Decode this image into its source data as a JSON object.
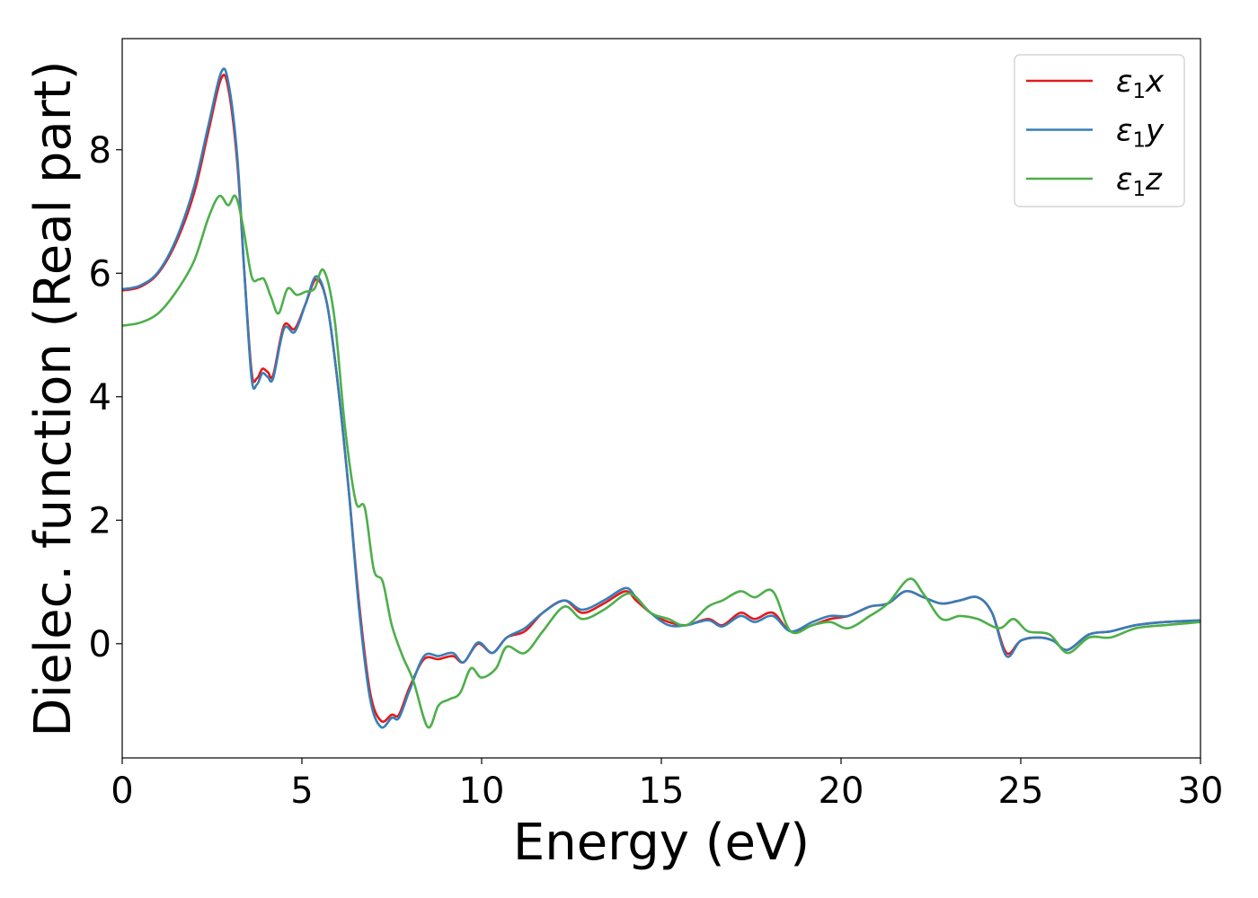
{
  "chart_data": {
    "type": "line",
    "xlabel": "Energy (eV)",
    "ylabel": "Dielec. function (Real part)",
    "xlim": [
      0,
      30
    ],
    "ylim": [
      -1.85,
      9.8
    ],
    "xticks": [
      0,
      5,
      10,
      15,
      20,
      25,
      30
    ],
    "yticks": [
      0,
      2,
      4,
      6,
      8
    ],
    "grid": false,
    "legend_position": "top-right",
    "series": [
      {
        "name": "ε1x",
        "legend_base": "ε",
        "legend_sub": "1",
        "legend_var": "x",
        "color": "#e41a1c",
        "points": [
          [
            0,
            5.72
          ],
          [
            0.5,
            5.78
          ],
          [
            1.0,
            6.0
          ],
          [
            1.5,
            6.5
          ],
          [
            2.0,
            7.3
          ],
          [
            2.4,
            8.3
          ],
          [
            2.75,
            9.15
          ],
          [
            2.95,
            9.0
          ],
          [
            3.2,
            7.8
          ],
          [
            3.4,
            6.0
          ],
          [
            3.6,
            4.4
          ],
          [
            3.75,
            4.3
          ],
          [
            3.9,
            4.45
          ],
          [
            4.05,
            4.4
          ],
          [
            4.2,
            4.35
          ],
          [
            4.5,
            5.15
          ],
          [
            4.8,
            5.1
          ],
          [
            5.1,
            5.5
          ],
          [
            5.4,
            5.9
          ],
          [
            5.7,
            5.5
          ],
          [
            6.0,
            4.2
          ],
          [
            6.3,
            2.5
          ],
          [
            6.6,
            0.6
          ],
          [
            6.9,
            -0.8
          ],
          [
            7.2,
            -1.25
          ],
          [
            7.5,
            -1.15
          ],
          [
            7.7,
            -1.15
          ],
          [
            8.0,
            -0.7
          ],
          [
            8.4,
            -0.25
          ],
          [
            8.8,
            -0.25
          ],
          [
            9.2,
            -0.2
          ],
          [
            9.5,
            -0.3
          ],
          [
            9.9,
            0.0
          ],
          [
            10.3,
            -0.15
          ],
          [
            10.7,
            0.1
          ],
          [
            11.2,
            0.2
          ],
          [
            11.7,
            0.5
          ],
          [
            12.3,
            0.7
          ],
          [
            12.8,
            0.5
          ],
          [
            13.4,
            0.65
          ],
          [
            14.0,
            0.85
          ],
          [
            14.3,
            0.7
          ],
          [
            14.7,
            0.5
          ],
          [
            15.2,
            0.35
          ],
          [
            15.7,
            0.3
          ],
          [
            16.3,
            0.4
          ],
          [
            16.7,
            0.3
          ],
          [
            17.2,
            0.5
          ],
          [
            17.6,
            0.4
          ],
          [
            18.1,
            0.5
          ],
          [
            18.6,
            0.2
          ],
          [
            19.2,
            0.3
          ],
          [
            19.7,
            0.4
          ],
          [
            20.2,
            0.45
          ],
          [
            20.8,
            0.6
          ],
          [
            21.3,
            0.65
          ],
          [
            21.8,
            0.85
          ],
          [
            22.3,
            0.75
          ],
          [
            22.8,
            0.65
          ],
          [
            23.3,
            0.7
          ],
          [
            23.8,
            0.75
          ],
          [
            24.2,
            0.5
          ],
          [
            24.6,
            -0.15
          ],
          [
            25.0,
            0.05
          ],
          [
            25.5,
            0.1
          ],
          [
            25.9,
            0.05
          ],
          [
            26.3,
            -0.1
          ],
          [
            26.9,
            0.15
          ],
          [
            27.5,
            0.2
          ],
          [
            28.2,
            0.3
          ],
          [
            29.0,
            0.35
          ],
          [
            30,
            0.37
          ]
        ]
      },
      {
        "name": "ε1y",
        "legend_base": "ε",
        "legend_sub": "1",
        "legend_var": "y",
        "color": "#377eb8",
        "points": [
          [
            0,
            5.74
          ],
          [
            0.5,
            5.8
          ],
          [
            1.0,
            6.02
          ],
          [
            1.5,
            6.55
          ],
          [
            2.0,
            7.4
          ],
          [
            2.4,
            8.4
          ],
          [
            2.75,
            9.25
          ],
          [
            2.95,
            9.1
          ],
          [
            3.2,
            7.9
          ],
          [
            3.4,
            6.0
          ],
          [
            3.6,
            4.3
          ],
          [
            3.75,
            4.2
          ],
          [
            3.9,
            4.38
          ],
          [
            4.05,
            4.32
          ],
          [
            4.2,
            4.3
          ],
          [
            4.5,
            5.1
          ],
          [
            4.8,
            5.05
          ],
          [
            5.1,
            5.5
          ],
          [
            5.4,
            5.95
          ],
          [
            5.7,
            5.5
          ],
          [
            6.0,
            4.2
          ],
          [
            6.3,
            2.5
          ],
          [
            6.6,
            0.5
          ],
          [
            6.9,
            -0.9
          ],
          [
            7.2,
            -1.35
          ],
          [
            7.5,
            -1.2
          ],
          [
            7.7,
            -1.2
          ],
          [
            8.0,
            -0.75
          ],
          [
            8.4,
            -0.2
          ],
          [
            8.8,
            -0.2
          ],
          [
            9.2,
            -0.15
          ],
          [
            9.5,
            -0.3
          ],
          [
            9.9,
            0.02
          ],
          [
            10.3,
            -0.15
          ],
          [
            10.7,
            0.1
          ],
          [
            11.2,
            0.25
          ],
          [
            11.7,
            0.5
          ],
          [
            12.3,
            0.7
          ],
          [
            12.8,
            0.55
          ],
          [
            13.4,
            0.7
          ],
          [
            14.0,
            0.9
          ],
          [
            14.3,
            0.75
          ],
          [
            14.7,
            0.5
          ],
          [
            15.2,
            0.3
          ],
          [
            15.7,
            0.3
          ],
          [
            16.3,
            0.38
          ],
          [
            16.7,
            0.28
          ],
          [
            17.2,
            0.45
          ],
          [
            17.6,
            0.35
          ],
          [
            18.1,
            0.45
          ],
          [
            18.6,
            0.2
          ],
          [
            19.2,
            0.35
          ],
          [
            19.7,
            0.45
          ],
          [
            20.2,
            0.45
          ],
          [
            20.8,
            0.6
          ],
          [
            21.3,
            0.65
          ],
          [
            21.8,
            0.85
          ],
          [
            22.3,
            0.75
          ],
          [
            22.8,
            0.65
          ],
          [
            23.3,
            0.7
          ],
          [
            23.8,
            0.75
          ],
          [
            24.2,
            0.5
          ],
          [
            24.6,
            -0.2
          ],
          [
            25.0,
            0.05
          ],
          [
            25.5,
            0.1
          ],
          [
            25.9,
            0.05
          ],
          [
            26.3,
            -0.1
          ],
          [
            26.9,
            0.15
          ],
          [
            27.5,
            0.2
          ],
          [
            28.2,
            0.3
          ],
          [
            29.0,
            0.35
          ],
          [
            30,
            0.38
          ]
        ]
      },
      {
        "name": "ε1z",
        "legend_base": "ε",
        "legend_sub": "1",
        "legend_var": "z",
        "color": "#4daf4a",
        "points": [
          [
            0,
            5.15
          ],
          [
            0.5,
            5.2
          ],
          [
            1.0,
            5.35
          ],
          [
            1.5,
            5.7
          ],
          [
            2.0,
            6.2
          ],
          [
            2.4,
            6.9
          ],
          [
            2.7,
            7.25
          ],
          [
            2.95,
            7.1
          ],
          [
            3.15,
            7.25
          ],
          [
            3.35,
            6.8
          ],
          [
            3.6,
            5.95
          ],
          [
            3.8,
            5.9
          ],
          [
            3.95,
            5.9
          ],
          [
            4.15,
            5.6
          ],
          [
            4.35,
            5.35
          ],
          [
            4.6,
            5.75
          ],
          [
            4.85,
            5.65
          ],
          [
            5.1,
            5.7
          ],
          [
            5.35,
            5.75
          ],
          [
            5.6,
            6.05
          ],
          [
            5.9,
            5.3
          ],
          [
            6.2,
            3.5
          ],
          [
            6.5,
            2.3
          ],
          [
            6.75,
            2.2
          ],
          [
            7.0,
            1.2
          ],
          [
            7.25,
            1.0
          ],
          [
            7.5,
            0.3
          ],
          [
            7.8,
            -0.2
          ],
          [
            8.1,
            -0.6
          ],
          [
            8.5,
            -1.35
          ],
          [
            8.8,
            -1.0
          ],
          [
            9.1,
            -0.9
          ],
          [
            9.4,
            -0.8
          ],
          [
            9.7,
            -0.4
          ],
          [
            10.0,
            -0.55
          ],
          [
            10.4,
            -0.4
          ],
          [
            10.7,
            -0.05
          ],
          [
            11.2,
            -0.15
          ],
          [
            11.7,
            0.2
          ],
          [
            12.3,
            0.6
          ],
          [
            12.8,
            0.4
          ],
          [
            13.4,
            0.55
          ],
          [
            14.0,
            0.8
          ],
          [
            14.3,
            0.75
          ],
          [
            14.7,
            0.5
          ],
          [
            15.2,
            0.4
          ],
          [
            15.7,
            0.3
          ],
          [
            16.3,
            0.6
          ],
          [
            16.7,
            0.7
          ],
          [
            17.2,
            0.85
          ],
          [
            17.6,
            0.75
          ],
          [
            18.1,
            0.85
          ],
          [
            18.6,
            0.2
          ],
          [
            19.2,
            0.3
          ],
          [
            19.7,
            0.35
          ],
          [
            20.2,
            0.25
          ],
          [
            20.8,
            0.45
          ],
          [
            21.3,
            0.65
          ],
          [
            21.9,
            1.05
          ],
          [
            22.3,
            0.8
          ],
          [
            22.8,
            0.4
          ],
          [
            23.3,
            0.45
          ],
          [
            23.8,
            0.4
          ],
          [
            24.4,
            0.25
          ],
          [
            24.8,
            0.4
          ],
          [
            25.2,
            0.2
          ],
          [
            25.8,
            0.15
          ],
          [
            26.3,
            -0.15
          ],
          [
            26.9,
            0.1
          ],
          [
            27.5,
            0.1
          ],
          [
            28.2,
            0.25
          ],
          [
            29.0,
            0.3
          ],
          [
            30,
            0.35
          ]
        ]
      }
    ]
  }
}
